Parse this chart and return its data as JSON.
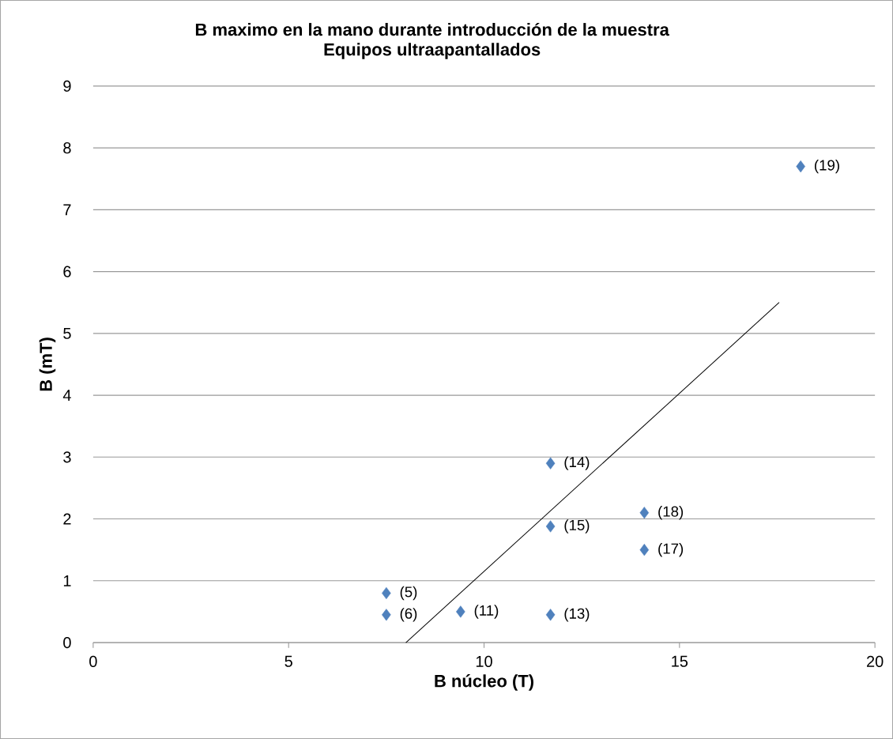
{
  "chart_data": {
    "type": "scatter",
    "title": "B maximo en la mano durante introducción de la muestra",
    "subtitle": "Equipos ultraapantallados",
    "xlabel": "B núcleo (T)",
    "ylabel": "B  (mT)",
    "series": [
      {
        "color": "#4f81bd",
        "x": [
          7.5,
          7.5,
          9.4,
          11.7,
          11.7,
          11.7,
          14.1,
          14.1,
          18.1
        ],
        "values": [
          0.8,
          0.45,
          0.5,
          0.45,
          2.9,
          1.88,
          2.1,
          1.5,
          7.7
        ]
      },
      {
        "type": "line",
        "color": "#000000",
        "marker": "none",
        "x": [
          8.0,
          17.55
        ],
        "values": [
          0,
          5.5
        ]
      }
    ],
    "annotations": [
      {
        "text": "(5)",
        "x": 7.5,
        "y": 0.8
      },
      {
        "text": "(6)",
        "x": 7.5,
        "y": 0.45
      },
      {
        "text": "(11)",
        "x": 9.4,
        "y": 0.5
      },
      {
        "text": "(13)",
        "x": 11.7,
        "y": 0.45
      },
      {
        "text": "(14)",
        "x": 11.7,
        "y": 2.9
      },
      {
        "text": "(15)",
        "x": 11.7,
        "y": 1.88
      },
      {
        "text": "(18)",
        "x": 14.1,
        "y": 2.1
      },
      {
        "text": "(17)",
        "x": 14.1,
        "y": 1.5
      },
      {
        "text": "(19)",
        "x": 18.1,
        "y": 7.7
      }
    ],
    "xlim": [
      0,
      20
    ],
    "ylim": [
      0,
      9
    ],
    "xticks": [
      0,
      5,
      10,
      15,
      20
    ],
    "yticks": [
      0,
      1,
      2,
      3,
      4,
      5,
      6,
      7,
      8,
      9
    ],
    "grid": "y",
    "legend": false,
    "marker": "diamond"
  }
}
